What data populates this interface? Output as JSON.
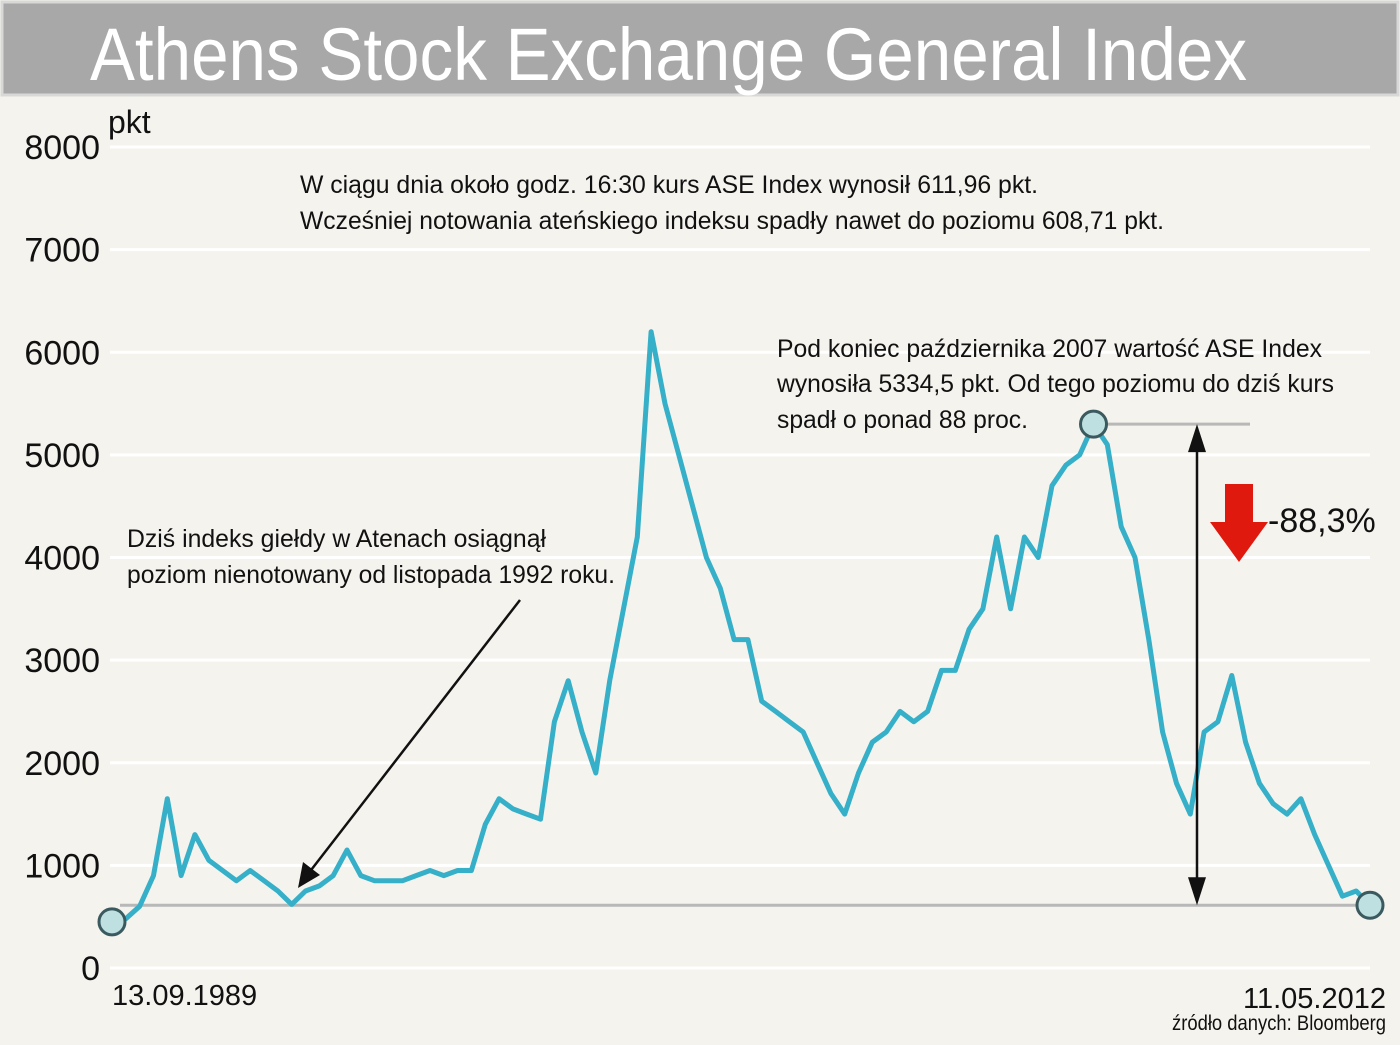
{
  "chart_data": {
    "type": "line",
    "title": "Athens Stock Exchange General Index",
    "y_unit": "pkt",
    "source": "źródło danych: Bloomberg",
    "annotations": [
      "W ciągu dnia około godz. 16:30 kurs ASE Index wynosił 611,96 pkt.",
      "Wcześniej notowania ateńskiego indeksu spadły nawet do poziomu 608,71 pkt.",
      "Dziś indeks giełdy w Atenach osiągnął",
      "poziom nienotowany od listopada 1992 roku.",
      "Pod koniec października 2007 wartość ASE Index",
      "wynosiła 5334,5 pkt. Od tego poziomu do dziś kurs",
      "spadł o ponad 88 proc.",
      "-88,3%"
    ],
    "categories": [
      "13.09.1989",
      null,
      null,
      null,
      null,
      null,
      null,
      null,
      null,
      null,
      null,
      null,
      null,
      null,
      null,
      null,
      null,
      null,
      null,
      null,
      null,
      null,
      null,
      null,
      null,
      null,
      null,
      null,
      null,
      null,
      null,
      null,
      null,
      null,
      null,
      null,
      null,
      null,
      null,
      null,
      null,
      null,
      null,
      null,
      null,
      null,
      null,
      null,
      null,
      null,
      null,
      null,
      null,
      null,
      null,
      null,
      null,
      null,
      null,
      null,
      null,
      null,
      null,
      null,
      null,
      null,
      null,
      null,
      null,
      null,
      null,
      null,
      null,
      null,
      null,
      null,
      null,
      null,
      null,
      null,
      null,
      null,
      null,
      null,
      null,
      null,
      null,
      null,
      null,
      null,
      null,
      "11.05.2012"
    ],
    "series": [
      {
        "name": "ASE General Index",
        "color": "#36afc8",
        "values": [
          450,
          480,
          600,
          900,
          1650,
          900,
          1300,
          1050,
          950,
          850,
          950,
          850,
          750,
          620,
          750,
          800,
          900,
          1150,
          900,
          850,
          850,
          850,
          900,
          950,
          900,
          950,
          950,
          1400,
          1650,
          1550,
          1500,
          1450,
          2400,
          2800,
          2300,
          1900,
          2800,
          3500,
          4200,
          6200,
          5500,
          5000,
          4500,
          4000,
          3700,
          3200,
          3200,
          2600,
          2500,
          2400,
          2300,
          2000,
          1700,
          1500,
          1900,
          2200,
          2300,
          2500,
          2400,
          2500,
          2900,
          2900,
          3300,
          3500,
          4200,
          3500,
          4200,
          4000,
          4700,
          4900,
          5000,
          5300,
          5100,
          4300,
          4000,
          3200,
          2300,
          1800,
          1500,
          2300,
          2400,
          2850,
          2200,
          1800,
          1600,
          1500,
          1650,
          1300,
          1000,
          700,
          750,
          612
        ]
      }
    ],
    "ylim": [
      0,
      8000
    ],
    "yticks": [
      0,
      1000,
      2000,
      3000,
      4000,
      5000,
      6000,
      7000,
      8000
    ],
    "grid": true
  }
}
